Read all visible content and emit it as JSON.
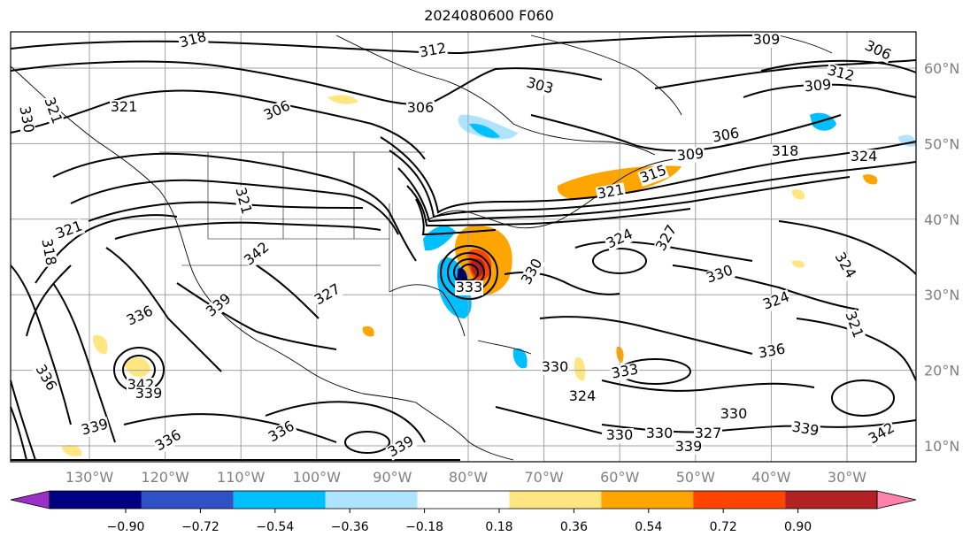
{
  "title": "2024080600 F060",
  "map": {
    "lon_labels": [
      "130°W",
      "120°W",
      "110°W",
      "100°W",
      "90°W",
      "80°W",
      "70°W",
      "60°W",
      "50°W",
      "40°W",
      "30°W"
    ],
    "lat_labels": [
      "60°N",
      "50°N",
      "40°N",
      "30°N",
      "20°N",
      "10°N"
    ],
    "contour_labels": [
      {
        "text": "318"
      },
      {
        "text": "312"
      },
      {
        "text": "309"
      },
      {
        "text": "306"
      },
      {
        "text": "312"
      },
      {
        "text": "309"
      },
      {
        "text": "303"
      },
      {
        "text": "306"
      },
      {
        "text": "306"
      },
      {
        "text": "321"
      },
      {
        "text": "330"
      },
      {
        "text": "321"
      },
      {
        "text": "306"
      },
      {
        "text": "309"
      },
      {
        "text": "318"
      },
      {
        "text": "324"
      },
      {
        "text": "315"
      },
      {
        "text": "321"
      },
      {
        "text": "321"
      },
      {
        "text": "318"
      },
      {
        "text": "342"
      },
      {
        "text": "327"
      },
      {
        "text": "324"
      },
      {
        "text": "327"
      },
      {
        "text": "330"
      },
      {
        "text": "330"
      },
      {
        "text": "324"
      },
      {
        "text": "336"
      },
      {
        "text": "339"
      },
      {
        "text": "336"
      },
      {
        "text": "321"
      },
      {
        "text": "324"
      },
      {
        "text": "321"
      },
      {
        "text": "342"
      },
      {
        "text": "339"
      },
      {
        "text": "339"
      },
      {
        "text": "336"
      },
      {
        "text": "336"
      },
      {
        "text": "339"
      },
      {
        "text": "330"
      },
      {
        "text": "333"
      },
      {
        "text": "324"
      },
      {
        "text": "330"
      },
      {
        "text": "330"
      },
      {
        "text": "327"
      },
      {
        "text": "330"
      },
      {
        "text": "336"
      },
      {
        "text": "339"
      },
      {
        "text": "342"
      },
      {
        "text": "339"
      },
      {
        "text": "333"
      }
    ]
  },
  "colorbar": {
    "ticks": [
      "−0.90",
      "−0.72",
      "−0.54",
      "−0.36",
      "−0.18",
      "0.18",
      "0.36",
      "0.54",
      "0.72",
      "0.90"
    ],
    "colors": [
      "#9b30c8",
      "#000080",
      "#3050c8",
      "#00bfff",
      "#aee4ff",
      "#ffffff",
      "#ffe680",
      "#ffa500",
      "#ff4500",
      "#b22222",
      "#ff82ab"
    ]
  }
}
